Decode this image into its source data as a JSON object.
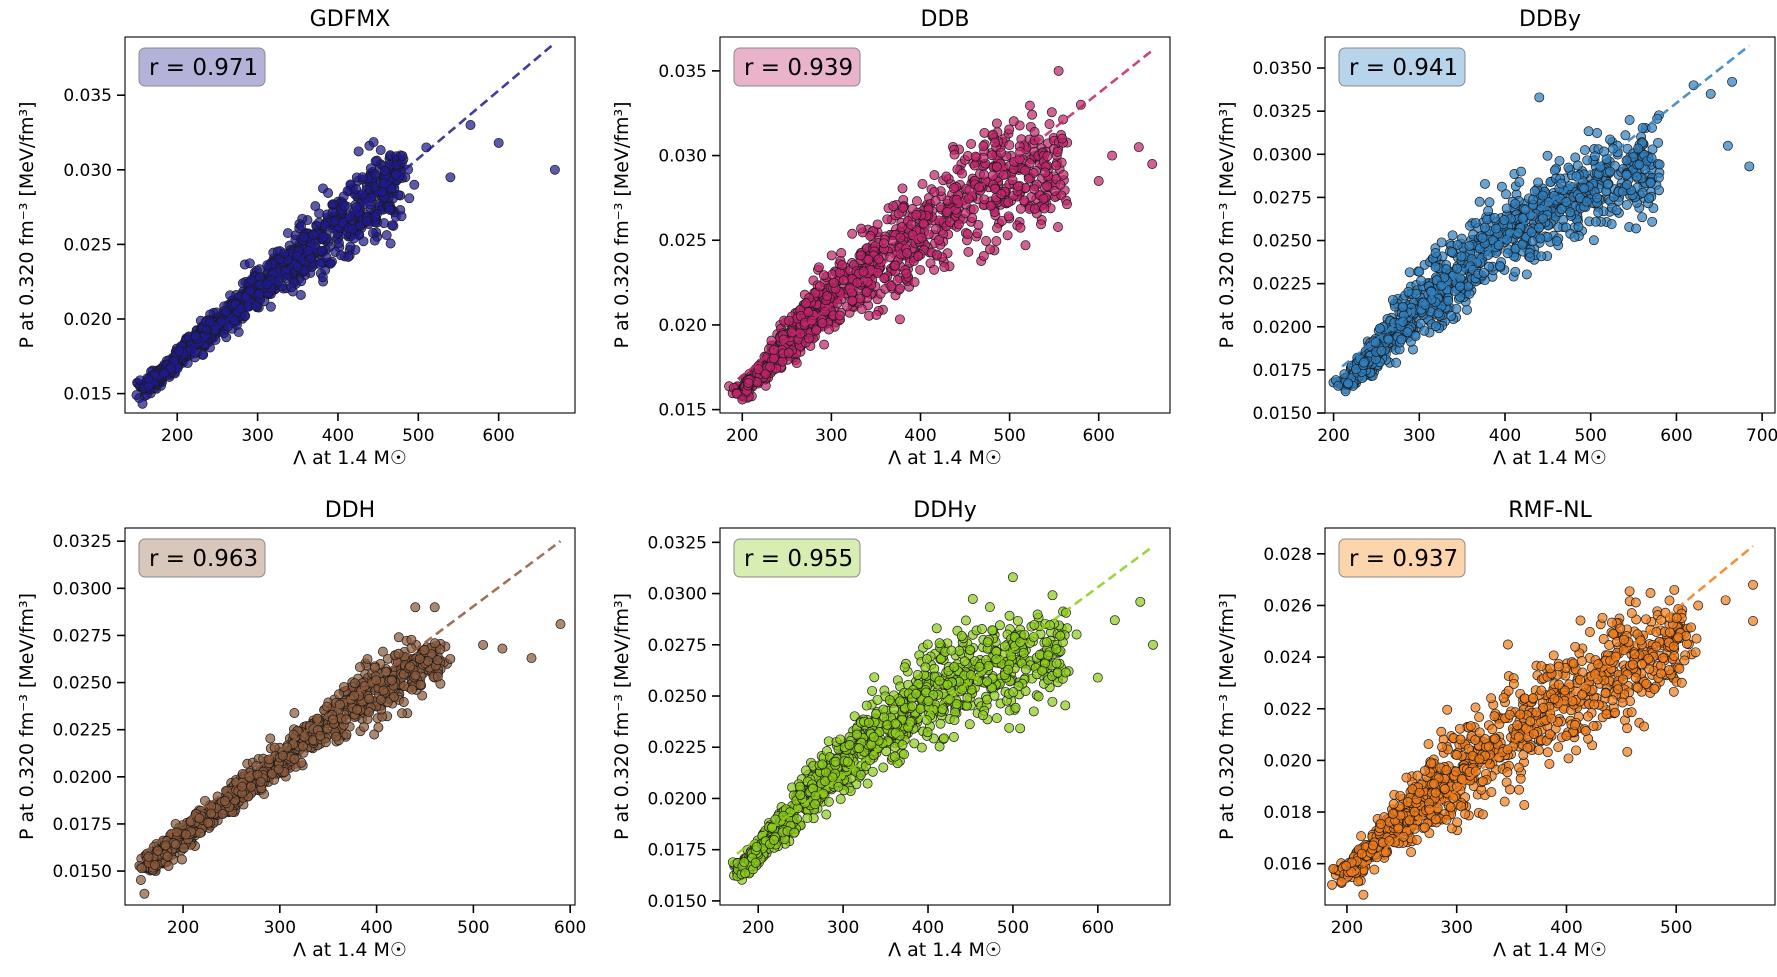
{
  "figure": {
    "xlabel": "Λ at 1.4 M☉",
    "ylabel": "P at 0.320 fm⁻³ [MeV/fm³]"
  },
  "chart_data": [
    {
      "type": "scatter",
      "title": "GDFMX",
      "color": "#1f1a8f",
      "r_box": "#b3b3d9",
      "r_label": "r = 0.971",
      "xlabel": "Λ at 1.4 M☉",
      "ylabel": "P at 0.320 fm⁻³ [MeV/fm³]",
      "xlim": [
        135,
        695
      ],
      "ylim": [
        0.0137,
        0.0389
      ],
      "xticks": [
        200,
        300,
        400,
        500,
        600
      ],
      "yticks": [
        0.015,
        0.02,
        0.025,
        0.03,
        0.035
      ],
      "ytick_labels": [
        "0.015",
        "0.020",
        "0.025",
        "0.030",
        "0.035"
      ],
      "trend": [
        [
          165,
          0.0155
        ],
        [
          670,
          0.0385
        ]
      ],
      "cloud": [
        [
          160,
          0.0148,
          0.016
        ],
        [
          260,
          0.019,
          0.0212
        ],
        [
          350,
          0.0222,
          0.0262
        ],
        [
          430,
          0.0248,
          0.03
        ],
        [
          480,
          0.0268,
          0.0325
        ]
      ],
      "outliers": [
        [
          600,
          0.0318
        ],
        [
          670,
          0.03
        ],
        [
          565,
          0.033
        ],
        [
          540,
          0.0295
        ],
        [
          510,
          0.0315
        ],
        [
          495,
          0.029
        ]
      ]
    },
    {
      "type": "scatter",
      "title": "DDB",
      "color": "#c0246b",
      "r_box": "#e8b3cb",
      "r_label": "r = 0.939",
      "xlabel": "Λ at 1.4 M☉",
      "ylabel": "P at 0.320 fm⁻³ [MeV/fm³]",
      "xlim": [
        175,
        680
      ],
      "ylim": [
        0.0148,
        0.037
      ],
      "xticks": [
        200,
        300,
        400,
        500,
        600
      ],
      "yticks": [
        0.015,
        0.02,
        0.025,
        0.03,
        0.035
      ],
      "ytick_labels": [
        "0.015",
        "0.020",
        "0.025",
        "0.030",
        "0.035"
      ],
      "trend": [
        [
          195,
          0.0168
        ],
        [
          660,
          0.0362
        ]
      ],
      "cloud": [
        [
          200,
          0.0155,
          0.0165
        ],
        [
          280,
          0.019,
          0.0225
        ],
        [
          370,
          0.0215,
          0.0275
        ],
        [
          460,
          0.024,
          0.0315
        ],
        [
          560,
          0.0265,
          0.033
        ]
      ],
      "outliers": [
        [
          645,
          0.0305
        ],
        [
          660,
          0.0295
        ],
        [
          615,
          0.03
        ],
        [
          580,
          0.033
        ],
        [
          555,
          0.035
        ],
        [
          600,
          0.0285
        ],
        [
          540,
          0.029
        ],
        [
          200,
          0.0156
        ]
      ]
    },
    {
      "type": "scatter",
      "title": "DDBy",
      "color": "#2f7fbf",
      "r_box": "#b8d4ea",
      "r_label": "r = 0.941",
      "xlabel": "Λ at 1.4 M☉",
      "ylabel": "P at 0.320 fm⁻³ [MeV/fm³]",
      "xlim": [
        190,
        715
      ],
      "ylim": [
        0.015,
        0.0368
      ],
      "xticks": [
        200,
        300,
        400,
        500,
        600,
        700
      ],
      "yticks": [
        0.015,
        0.0175,
        0.02,
        0.0225,
        0.025,
        0.0275,
        0.03,
        0.0325,
        0.035
      ],
      "ytick_labels": [
        "0.0150",
        "0.0175",
        "0.0200",
        "0.0225",
        "0.0250",
        "0.0275",
        "0.0300",
        "0.0325",
        "0.0350"
      ],
      "trend": [
        [
          210,
          0.0177
        ],
        [
          685,
          0.0363
        ]
      ],
      "cloud": [
        [
          215,
          0.0162,
          0.0172
        ],
        [
          290,
          0.019,
          0.0225
        ],
        [
          380,
          0.022,
          0.027
        ],
        [
          470,
          0.025,
          0.03
        ],
        [
          580,
          0.027,
          0.032
        ]
      ],
      "outliers": [
        [
          685,
          0.0293
        ],
        [
          660,
          0.0305
        ],
        [
          640,
          0.0335
        ],
        [
          620,
          0.034
        ],
        [
          665,
          0.0342
        ],
        [
          300,
          0.0232
        ],
        [
          440,
          0.0333
        ]
      ]
    },
    {
      "type": "scatter",
      "title": "DDH",
      "color": "#8b5a3c",
      "r_box": "#d9c7bb",
      "r_label": "r = 0.963",
      "xlabel": "Λ at 1.4 M☉",
      "ylabel": "P at 0.320 fm⁻³ [MeV/fm³]",
      "xlim": [
        140,
        605
      ],
      "ylim": [
        0.0132,
        0.0332
      ],
      "xticks": [
        200,
        300,
        400,
        500,
        600
      ],
      "yticks": [
        0.015,
        0.0175,
        0.02,
        0.0225,
        0.025,
        0.0275,
        0.03,
        0.0325
      ],
      "ytick_labels": [
        "0.0150",
        "0.0175",
        "0.0200",
        "0.0225",
        "0.0250",
        "0.0275",
        "0.0300",
        "0.0325"
      ],
      "trend": [
        [
          160,
          0.016
        ],
        [
          590,
          0.0325
        ]
      ],
      "cloud": [
        [
          165,
          0.0145,
          0.0162
        ],
        [
          240,
          0.0178,
          0.0192
        ],
        [
          320,
          0.0205,
          0.0228
        ],
        [
          400,
          0.023,
          0.0262
        ],
        [
          470,
          0.025,
          0.028
        ]
      ],
      "outliers": [
        [
          590,
          0.0281
        ],
        [
          560,
          0.0263
        ],
        [
          530,
          0.0268
        ],
        [
          510,
          0.027
        ],
        [
          440,
          0.029
        ],
        [
          460,
          0.029
        ],
        [
          160,
          0.0138
        ]
      ]
    },
    {
      "type": "scatter",
      "title": "DDHy",
      "color": "#8ccc1a",
      "r_box": "#d7edb1",
      "r_label": "r = 0.955",
      "xlabel": "Λ at 1.4 M☉",
      "ylabel": "P at 0.320 fm⁻³ [MeV/fm³]",
      "xlim": [
        155,
        685
      ],
      "ylim": [
        0.0148,
        0.0332
      ],
      "xticks": [
        200,
        300,
        400,
        500,
        600
      ],
      "yticks": [
        0.015,
        0.0175,
        0.02,
        0.0225,
        0.025,
        0.0275,
        0.03,
        0.0325
      ],
      "ytick_labels": [
        "0.0150",
        "0.0175",
        "0.0200",
        "0.0225",
        "0.0250",
        "0.0275",
        "0.0300",
        "0.0325"
      ],
      "trend": [
        [
          175,
          0.0173
        ],
        [
          665,
          0.0323
        ]
      ],
      "cloud": [
        [
          180,
          0.016,
          0.017
        ],
        [
          260,
          0.019,
          0.0215
        ],
        [
          350,
          0.0215,
          0.0255
        ],
        [
          440,
          0.0235,
          0.0285
        ],
        [
          560,
          0.025,
          0.0295
        ]
      ],
      "outliers": [
        [
          665,
          0.0275
        ],
        [
          650,
          0.0296
        ],
        [
          620,
          0.0287
        ],
        [
          600,
          0.0259
        ],
        [
          500,
          0.0308
        ],
        [
          575,
          0.028
        ]
      ]
    },
    {
      "type": "scatter",
      "title": "RMF-NL",
      "color": "#f07d1a",
      "r_box": "#fdd5ad",
      "r_label": "r = 0.937",
      "xlabel": "Λ at 1.4 M☉",
      "ylabel": "P at 0.320 fm⁻³ [MeV/fm³]",
      "xlim": [
        180,
        590
      ],
      "ylim": [
        0.0144,
        0.029
      ],
      "xticks": [
        200,
        300,
        400,
        500
      ],
      "yticks": [
        0.016,
        0.018,
        0.02,
        0.022,
        0.024,
        0.026,
        0.028
      ],
      "ytick_labels": [
        "0.016",
        "0.018",
        "0.020",
        "0.022",
        "0.024",
        "0.026",
        "0.028"
      ],
      "trend": [
        [
          195,
          0.0152
        ],
        [
          570,
          0.0283
        ]
      ],
      "cloud": [
        [
          200,
          0.0153,
          0.016
        ],
        [
          270,
          0.017,
          0.02
        ],
        [
          350,
          0.019,
          0.023
        ],
        [
          430,
          0.021,
          0.0255
        ],
        [
          510,
          0.023,
          0.0265
        ]
      ],
      "outliers": [
        [
          570,
          0.0268
        ],
        [
          570,
          0.0254
        ],
        [
          545,
          0.0262
        ],
        [
          520,
          0.026
        ],
        [
          195,
          0.0153
        ],
        [
          215,
          0.0148
        ]
      ]
    }
  ]
}
